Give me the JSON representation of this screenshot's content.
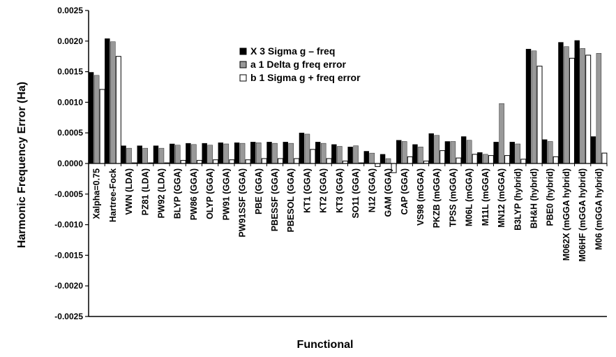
{
  "chart_data": {
    "type": "bar",
    "title": "",
    "xlabel": "Functional",
    "ylabel": "Harmonic Frequency Error (Ha)",
    "ylim": [
      -0.0025,
      0.0025
    ],
    "yticks": [
      0.0025,
      0.002,
      0.0015,
      0.001,
      0.0005,
      0.0,
      -0.0005,
      -0.001,
      -0.0015,
      -0.002,
      -0.0025
    ],
    "ytick_labels": [
      "0.0025",
      "0.0020",
      "0.0015",
      "0.0010",
      "0.0005",
      "0.0000",
      "-0.0005",
      "-0.0010",
      "-0.0015",
      "-0.0020",
      "-0.0025"
    ],
    "grid": false,
    "legend_position": "top-center",
    "categories": [
      "Xalpha=0.75",
      "Hartree-Fock",
      "VWN (LDA)",
      "PZ81 (LDA)",
      "PW92 (LDA)",
      "BLYP (GGA)",
      "PW86 (GGA)",
      "OLYP (GGA)",
      "PW91 (GGA)",
      "PW91SSF (GGA)",
      "PBE (GGA)",
      "PBESSF (GGA)",
      "PBESOL (GGA)",
      "KT1 (GGA)",
      "KT2 (GGA)",
      "KT3 (GGA)",
      "SO11 (GGA)",
      "N12 (GGA)",
      "GAM (GGA)",
      "CAP (GGA)",
      "VS98 (mGGA)",
      "PKZB (mGGA)",
      "TPSS (mGGA)",
      "M06L (mGGA)",
      "M11L (mGGA)",
      "MN12 (mGGA)",
      "B3LYP (hybrid)",
      "BH&H (hybrid)",
      "PBE0 (hybrid)",
      "M062X (mGGA hybrid)",
      "M06HF (mGGA hybrid)",
      "M06 (mGGA hybrid)"
    ],
    "series": [
      {
        "name": "X 3 Sigma g – freq",
        "color": "#000000",
        "values": [
          0.00149,
          0.00204,
          0.00029,
          0.00029,
          0.00029,
          0.00032,
          0.00033,
          0.00033,
          0.00034,
          0.00034,
          0.00035,
          0.00035,
          0.00035,
          0.0005,
          0.00035,
          0.00031,
          0.00027,
          0.0002,
          0.00015,
          0.00038,
          0.00031,
          0.00049,
          0.00036,
          0.00044,
          0.00018,
          0.00035,
          0.00035,
          0.00187,
          0.00039,
          0.00198,
          0.00201,
          0.00044
        ]
      },
      {
        "name": "a 1 Delta g freq error",
        "color": "#999999",
        "values": [
          0.00144,
          0.00199,
          0.00025,
          0.00025,
          0.00025,
          0.0003,
          0.00031,
          0.0003,
          0.00032,
          0.00033,
          0.00034,
          0.00033,
          0.00033,
          0.00048,
          0.00033,
          0.00028,
          0.00029,
          0.00017,
          8e-05,
          0.00036,
          0.00027,
          0.00046,
          0.00036,
          0.00038,
          0.00015,
          0.00098,
          0.00032,
          0.00184,
          0.00036,
          0.00191,
          0.00188,
          0.0018
        ]
      },
      {
        "name": "b 1 Sigma g + freq error",
        "color": "#ffffff",
        "values": [
          0.00121,
          0.00175,
          1e-05,
          1e-05,
          1e-05,
          5e-05,
          5e-05,
          6e-05,
          6e-05,
          6e-05,
          8e-05,
          8e-05,
          8e-05,
          0.00023,
          8e-05,
          4e-05,
          1e-05,
          -5e-05,
          -0.00015,
          0.00011,
          4e-05,
          0.00021,
          9e-05,
          0.00015,
          0.00013,
          0.00013,
          7e-05,
          0.00159,
          0.00011,
          0.00172,
          0.00177,
          0.00017
        ]
      }
    ]
  }
}
